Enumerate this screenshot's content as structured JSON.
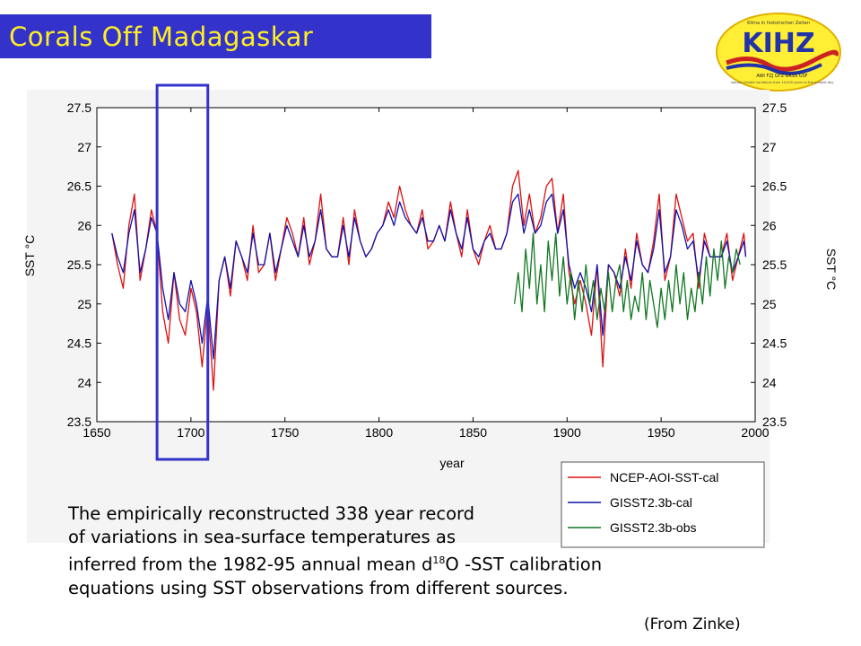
{
  "slide": {
    "title": "Corals Off Madagaskar",
    "caption_line1": "The empirically reconstructed 338 year record",
    "caption_line2": "of variations in sea-surface temperatures as",
    "caption_line3_pre": "inferred from the 1982-95 annual mean d",
    "caption_line3_sup": "18",
    "caption_line3_post": "O -SST calibration",
    "caption_line4": "equations using SST observations from different sources.",
    "source": "(From Zinke)"
  },
  "logo": {
    "text": "KIHZ",
    "line1": "Klima in historischen Zeiten",
    "line2": "AWI FZJ GFZ GKSS GSF",
    "line3": "natural climate variations from 10,000 years to the present day"
  },
  "colors": {
    "title_bar": "#3333cc",
    "title_text": "#ffee22",
    "ncep": "#dd1111",
    "gisst_cal": "#1111aa",
    "gisst_obs": "#117722",
    "highlight_box": "#3333cc"
  },
  "chart_data": {
    "type": "line",
    "xlabel": "year",
    "ylabel": "SST °C",
    "ylabel_right": "SST °C",
    "xlim": [
      1650,
      2000
    ],
    "ylim": [
      23.5,
      27.5
    ],
    "x_ticks": [
      "1650",
      "1700",
      "1750",
      "1800",
      "1850",
      "1900",
      "1950",
      "2000"
    ],
    "y_ticks": [
      "23.5",
      "24",
      "24.5",
      "25",
      "25.5",
      "26",
      "26.5",
      "27",
      "27.5"
    ],
    "legend_position": "bottom-right",
    "highlight_range": [
      1682,
      1709
    ],
    "series": [
      {
        "name": "NCEP-AOI-SST-cal",
        "color": "#dd1111",
        "x": [
          1658,
          1661,
          1664,
          1667,
          1670,
          1673,
          1676,
          1679,
          1682,
          1685,
          1688,
          1691,
          1694,
          1697,
          1700,
          1703,
          1706,
          1709,
          1712,
          1715,
          1718,
          1721,
          1724,
          1727,
          1730,
          1733,
          1736,
          1739,
          1742,
          1745,
          1748,
          1751,
          1754,
          1757,
          1760,
          1763,
          1766,
          1769,
          1772,
          1775,
          1778,
          1781,
          1784,
          1787,
          1790,
          1793,
          1796,
          1799,
          1802,
          1805,
          1808,
          1811,
          1814,
          1817,
          1820,
          1823,
          1826,
          1829,
          1832,
          1835,
          1838,
          1841,
          1844,
          1847,
          1850,
          1853,
          1856,
          1859,
          1862,
          1865,
          1868,
          1871,
          1874,
          1877,
          1880,
          1883,
          1886,
          1889,
          1892,
          1895,
          1898,
          1901,
          1904,
          1907,
          1910,
          1913,
          1916,
          1919,
          1922,
          1925,
          1928,
          1931,
          1934,
          1937,
          1940,
          1943,
          1946,
          1949,
          1952,
          1955,
          1958,
          1961,
          1964,
          1967,
          1970,
          1973,
          1976,
          1979,
          1982,
          1985,
          1988,
          1991,
          1994,
          1995
        ],
        "y": [
          25.9,
          25.5,
          25.2,
          26.0,
          26.4,
          25.3,
          25.7,
          26.2,
          25.9,
          24.9,
          24.5,
          25.4,
          24.8,
          24.6,
          25.2,
          24.9,
          24.2,
          25.0,
          23.9,
          25.3,
          25.6,
          25.1,
          25.8,
          25.6,
          25.3,
          26.0,
          25.4,
          25.5,
          25.9,
          25.3,
          25.7,
          26.1,
          25.9,
          25.6,
          26.1,
          25.5,
          25.8,
          26.4,
          25.7,
          25.6,
          25.6,
          26.1,
          25.5,
          26.2,
          25.8,
          25.6,
          25.7,
          25.9,
          26.0,
          26.3,
          26.1,
          26.5,
          26.2,
          26.0,
          25.9,
          26.2,
          25.7,
          25.8,
          26.0,
          25.8,
          26.3,
          25.9,
          25.6,
          26.2,
          25.7,
          25.5,
          25.8,
          26.0,
          25.7,
          25.7,
          25.9,
          26.5,
          26.7,
          26.0,
          26.4,
          25.9,
          26.1,
          26.5,
          26.6,
          25.9,
          26.4,
          25.4,
          25.0,
          25.3,
          25.0,
          24.6,
          25.5,
          24.2,
          25.5,
          25.4,
          25.1,
          25.7,
          25.2,
          25.9,
          25.5,
          25.4,
          25.8,
          26.4,
          25.3,
          25.6,
          26.4,
          26.1,
          25.8,
          25.9,
          25.2,
          25.9,
          25.6,
          25.6,
          25.6,
          25.9,
          25.3,
          25.6,
          25.9,
          25.6
        ]
      },
      {
        "name": "GISST2.3b-cal",
        "color": "#1111aa",
        "x": [
          1658,
          1661,
          1664,
          1667,
          1670,
          1673,
          1676,
          1679,
          1682,
          1685,
          1688,
          1691,
          1694,
          1697,
          1700,
          1703,
          1706,
          1709,
          1712,
          1715,
          1718,
          1721,
          1724,
          1727,
          1730,
          1733,
          1736,
          1739,
          1742,
          1745,
          1748,
          1751,
          1754,
          1757,
          1760,
          1763,
          1766,
          1769,
          1772,
          1775,
          1778,
          1781,
          1784,
          1787,
          1790,
          1793,
          1796,
          1799,
          1802,
          1805,
          1808,
          1811,
          1814,
          1817,
          1820,
          1823,
          1826,
          1829,
          1832,
          1835,
          1838,
          1841,
          1844,
          1847,
          1850,
          1853,
          1856,
          1859,
          1862,
          1865,
          1868,
          1871,
          1874,
          1877,
          1880,
          1883,
          1886,
          1889,
          1892,
          1895,
          1898,
          1901,
          1904,
          1907,
          1910,
          1913,
          1916,
          1919,
          1922,
          1925,
          1928,
          1931,
          1934,
          1937,
          1940,
          1943,
          1946,
          1949,
          1952,
          1955,
          1958,
          1961,
          1964,
          1967,
          1970,
          1973,
          1976,
          1979,
          1982,
          1985,
          1988,
          1991,
          1994,
          1995
        ],
        "y": [
          25.9,
          25.6,
          25.4,
          25.9,
          26.2,
          25.4,
          25.7,
          26.1,
          25.9,
          25.2,
          24.8,
          25.4,
          25.0,
          24.9,
          25.3,
          25.0,
          24.5,
          25.1,
          24.3,
          25.3,
          25.6,
          25.2,
          25.8,
          25.6,
          25.4,
          25.9,
          25.5,
          25.5,
          25.9,
          25.4,
          25.7,
          26.0,
          25.8,
          25.6,
          26.0,
          25.6,
          25.8,
          26.2,
          25.7,
          25.6,
          25.6,
          26.0,
          25.6,
          26.1,
          25.8,
          25.6,
          25.7,
          25.9,
          26.0,
          26.2,
          26.0,
          26.3,
          26.1,
          26.0,
          25.9,
          26.1,
          25.8,
          25.8,
          26.0,
          25.8,
          26.2,
          25.9,
          25.7,
          26.1,
          25.7,
          25.6,
          25.8,
          25.9,
          25.7,
          25.7,
          25.9,
          26.3,
          26.4,
          25.9,
          26.2,
          25.9,
          26.0,
          26.3,
          26.4,
          25.9,
          26.2,
          25.5,
          25.2,
          25.4,
          25.2,
          24.9,
          25.5,
          24.6,
          25.5,
          25.4,
          25.2,
          25.6,
          25.3,
          25.8,
          25.5,
          25.4,
          25.7,
          26.2,
          25.4,
          25.6,
          26.2,
          26.0,
          25.7,
          25.8,
          25.3,
          25.8,
          25.6,
          25.6,
          25.6,
          25.8,
          25.4,
          25.6,
          25.8,
          25.6
        ]
      },
      {
        "name": "GISST2.3b-obs",
        "color": "#117722",
        "x": [
          1872,
          1874,
          1876,
          1878,
          1880,
          1882,
          1884,
          1886,
          1888,
          1890,
          1892,
          1894,
          1896,
          1898,
          1900,
          1902,
          1904,
          1906,
          1908,
          1910,
          1912,
          1914,
          1916,
          1918,
          1920,
          1922,
          1924,
          1926,
          1928,
          1930,
          1932,
          1934,
          1936,
          1938,
          1940,
          1942,
          1944,
          1946,
          1948,
          1950,
          1952,
          1954,
          1956,
          1958,
          1960,
          1962,
          1964,
          1966,
          1968,
          1970,
          1972,
          1974,
          1976,
          1978,
          1980,
          1982,
          1984,
          1986,
          1988,
          1990,
          1992
        ],
        "y": [
          25.0,
          25.4,
          24.9,
          25.7,
          25.2,
          25.9,
          25.0,
          25.5,
          24.9,
          25.8,
          25.3,
          25.9,
          25.1,
          25.6,
          25.0,
          25.4,
          24.8,
          25.3,
          24.9,
          25.5,
          25.0,
          25.3,
          24.8,
          25.2,
          24.9,
          25.4,
          24.9,
          25.3,
          25.5,
          24.9,
          25.3,
          24.8,
          25.1,
          24.9,
          25.4,
          24.8,
          25.3,
          25.0,
          24.7,
          25.2,
          24.8,
          25.3,
          24.9,
          25.5,
          25.0,
          25.4,
          24.8,
          25.2,
          24.9,
          25.4,
          25.0,
          25.6,
          25.1,
          25.7,
          25.3,
          25.8,
          25.2,
          25.6,
          25.4,
          25.7,
          25.5
        ]
      }
    ]
  }
}
